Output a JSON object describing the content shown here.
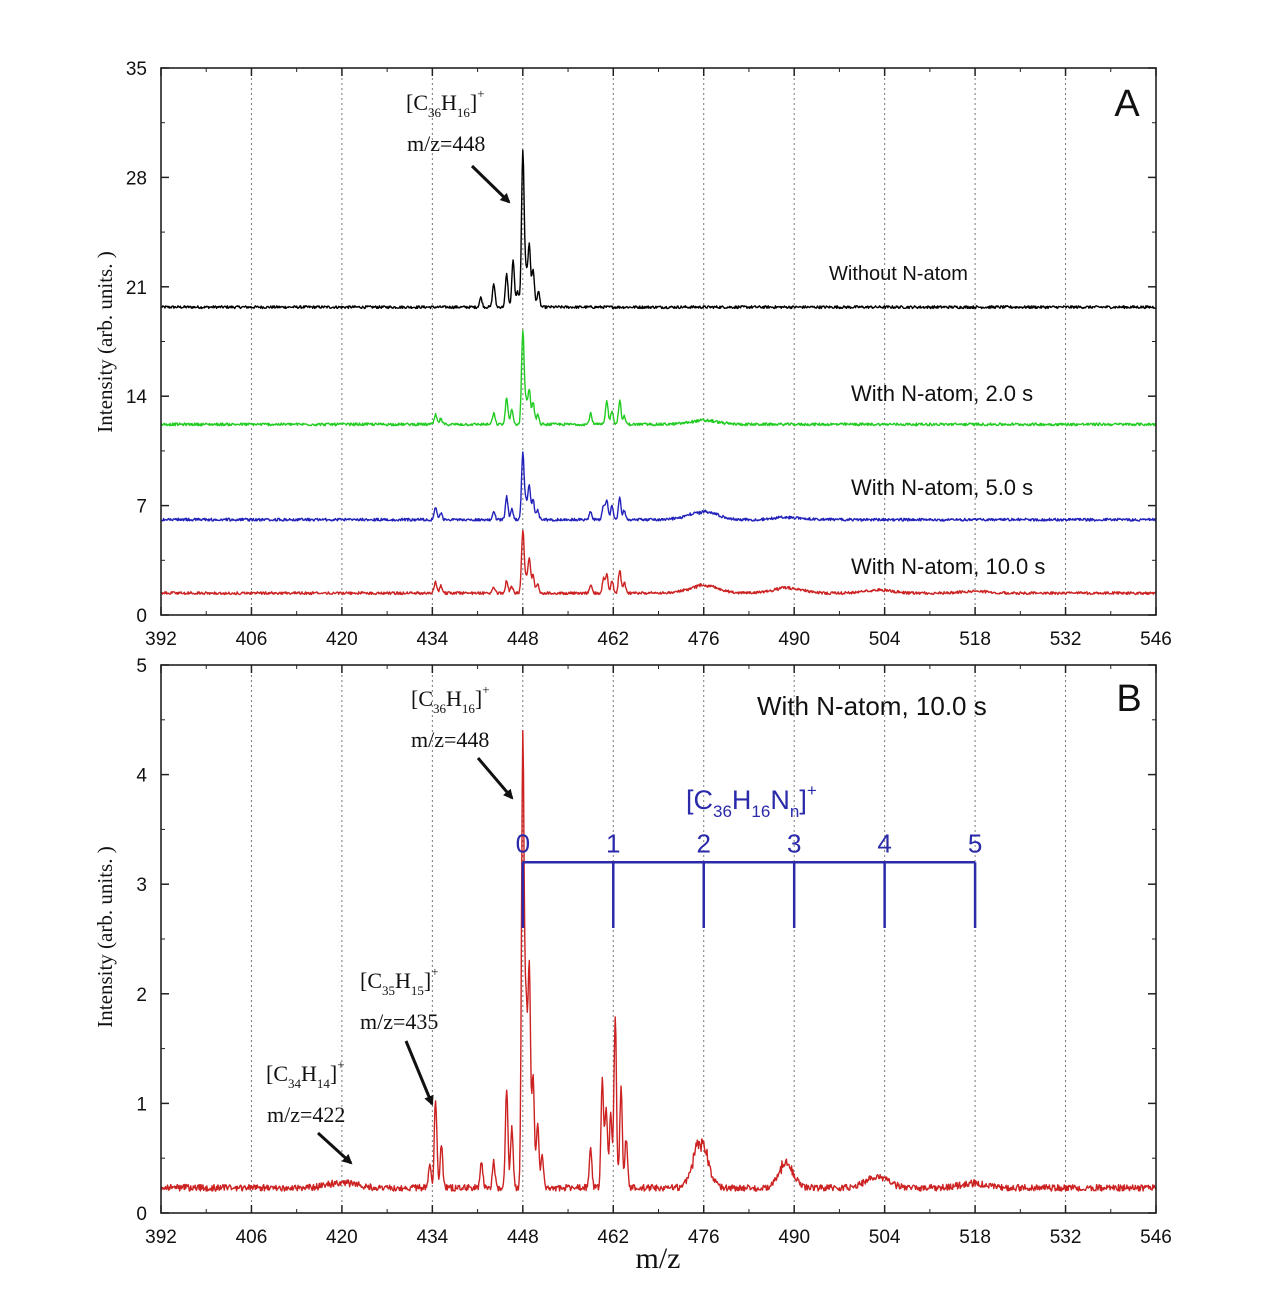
{
  "chart_data": [
    {
      "panel": "A",
      "type": "line",
      "panel_label": "A",
      "xlabel": "",
      "ylabel": "Intensity (arb. units. )",
      "xlim": [
        392,
        546
      ],
      "ylim": [
        0,
        35
      ],
      "xticks": [
        "392",
        "406",
        "420",
        "434",
        "448",
        "462",
        "476",
        "490",
        "504",
        "518",
        "532",
        "546"
      ],
      "yticks": [
        "0",
        "7",
        "14",
        "21",
        "28",
        "35"
      ],
      "grid_x": [
        406,
        420,
        434,
        448,
        462,
        476,
        490,
        504,
        518,
        532
      ],
      "series": [
        {
          "name": "Without N-atom",
          "color": "#000000",
          "baseline": 19.7,
          "peaks": [
            [
              441.5,
              0.6
            ],
            [
              443.5,
              1.5
            ],
            [
              445.5,
              2.1
            ],
            [
              446.5,
              3.0
            ],
            [
              447.2,
              1.0
            ],
            [
              448,
              10.0
            ],
            [
              448.5,
              2.2
            ],
            [
              449,
              4.0
            ],
            [
              449.6,
              2.4
            ],
            [
              450.4,
              1.0
            ]
          ]
        },
        {
          "name": "With N-atom, 2.0 s",
          "color": "#22cc22",
          "baseline": 12.2,
          "peaks": [
            [
              434.5,
              0.6
            ],
            [
              435.3,
              0.35
            ],
            [
              443.5,
              0.7
            ],
            [
              445.5,
              1.7
            ],
            [
              446.3,
              0.9
            ],
            [
              448,
              6.0
            ],
            [
              448.5,
              1.4
            ],
            [
              449,
              2.2
            ],
            [
              449.6,
              1.4
            ],
            [
              450.3,
              0.6
            ],
            [
              458.5,
              0.7
            ],
            [
              461,
              1.5
            ],
            [
              463,
              1.5
            ],
            [
              461.8,
              0.9
            ],
            [
              463.7,
              0.5
            ]
          ],
          "humps": [
            [
              476,
              0.25,
              3.0
            ]
          ]
        },
        {
          "name": "With N-atom, 5.0 s",
          "color": "#2222bb",
          "baseline": 6.1,
          "peaks": [
            [
              434.5,
              0.8
            ],
            [
              435.3,
              0.45
            ],
            [
              443.5,
              0.5
            ],
            [
              445.5,
              1.5
            ],
            [
              446.3,
              0.7
            ],
            [
              448,
              4.3
            ],
            [
              448.5,
              1.1
            ],
            [
              449,
              2.2
            ],
            [
              449.6,
              1.3
            ],
            [
              450.3,
              0.6
            ],
            [
              458.5,
              0.5
            ],
            [
              460.5,
              0.9
            ],
            [
              461,
              1.2
            ],
            [
              463,
              1.4
            ],
            [
              461.8,
              0.9
            ],
            [
              463.7,
              0.6
            ]
          ],
          "humps": [
            [
              475,
              0.3,
              3.0
            ],
            [
              477,
              0.25,
              2.5
            ],
            [
              489,
              0.15,
              3.0
            ]
          ]
        },
        {
          "name": "With N-atom, 10.0 s",
          "color": "#cc2222",
          "baseline": 1.4,
          "peaks": [
            [
              434.5,
              0.7
            ],
            [
              435.3,
              0.45
            ],
            [
              443.5,
              0.4
            ],
            [
              445.5,
              0.8
            ],
            [
              446.3,
              0.4
            ],
            [
              448,
              4.0
            ],
            [
              448.5,
              1.0
            ],
            [
              449,
              2.2
            ],
            [
              449.6,
              1.2
            ],
            [
              450.3,
              0.6
            ],
            [
              458.5,
              0.5
            ],
            [
              460.5,
              0.9
            ],
            [
              461,
              1.2
            ],
            [
              463,
              1.5
            ],
            [
              461.8,
              0.8
            ],
            [
              463.7,
              0.7
            ]
          ],
          "humps": [
            [
              476,
              0.5,
              3.0
            ],
            [
              489,
              0.35,
              3.0
            ],
            [
              503,
              0.2,
              3.0
            ],
            [
              518,
              0.12,
              3.0
            ]
          ]
        }
      ],
      "annotations": [
        {
          "kind": "formula",
          "text": "[C36H16]+",
          "base": "[C",
          "sub1": "36",
          "mid": "H",
          "sub2": "16",
          "close": "]",
          "sup": "+"
        },
        {
          "kind": "text",
          "text": "m/z=448"
        }
      ],
      "legend_labels": [
        "Without N-atom",
        "With N-atom, 2.0 s",
        "With N-atom, 5.0 s",
        "With N-atom, 10.0 s"
      ]
    },
    {
      "panel": "B",
      "type": "line",
      "panel_label": "B",
      "xlabel": "m/z",
      "ylabel": "Intensity (arb. units. )",
      "xlim": [
        392,
        546
      ],
      "ylim": [
        0,
        5
      ],
      "xticks": [
        "392",
        "406",
        "420",
        "434",
        "448",
        "462",
        "476",
        "490",
        "504",
        "518",
        "532",
        "546"
      ],
      "yticks": [
        "0",
        "1",
        "2",
        "3",
        "4",
        "5"
      ],
      "grid_x": [
        406,
        420,
        434,
        448,
        462,
        476,
        490,
        504,
        518,
        532
      ],
      "title_text": "With N-atom, 10.0 s",
      "series": [
        {
          "name": "With N-atom, 10.0 s",
          "color": "#cc2222",
          "baseline": 0.23,
          "peaks": [
            [
              433.6,
              0.2
            ],
            [
              434.5,
              0.82
            ],
            [
              435.4,
              0.4
            ],
            [
              441.6,
              0.25
            ],
            [
              443.5,
              0.25
            ],
            [
              445.5,
              0.9
            ],
            [
              446.3,
              0.55
            ],
            [
              448,
              4.1
            ],
            [
              448.5,
              1.6
            ],
            [
              449,
              2.0
            ],
            [
              449.6,
              1.0
            ],
            [
              450.3,
              0.6
            ],
            [
              451,
              0.3
            ],
            [
              458.5,
              0.35
            ],
            [
              460.3,
              1.0
            ],
            [
              460.9,
              0.75
            ],
            [
              461.6,
              0.7
            ],
            [
              462.3,
              1.55
            ],
            [
              463.2,
              0.9
            ],
            [
              464,
              0.45
            ]
          ],
          "humps": [
            [
              475.5,
              0.42,
              1.6
            ],
            [
              488.7,
              0.22,
              1.6
            ],
            [
              502.8,
              0.1,
              2.5
            ],
            [
              517.5,
              0.04,
              2.5
            ],
            [
              420,
              0.05,
              3.0
            ]
          ]
        }
      ],
      "n_ladder": {
        "label": {
          "base": "[C",
          "sub1": "36",
          "mid": "H",
          "sub2": "16",
          "n": "N",
          "sub3": "n",
          "close": "]",
          "sup": "+"
        },
        "color": "#2a2aaa",
        "y": 3.2,
        "tick_bottom": 2.6,
        "positions": [
          448,
          462,
          476,
          490,
          504,
          518
        ],
        "labels": [
          "0",
          "1",
          "2",
          "3",
          "4",
          "5"
        ]
      },
      "annotations": [
        {
          "id": "c36",
          "text": "[C36H16]+",
          "base": "[C",
          "sub1": "36",
          "mid": "H",
          "sub2": "16",
          "close": "]",
          "sup": "+",
          "mz": "m/z=448"
        },
        {
          "id": "c35",
          "text": "[C35H15]+",
          "base": "[C",
          "sub1": "35",
          "mid": "H",
          "sub2": "15",
          "close": "]",
          "sup": "+",
          "mz": "m/z=435"
        },
        {
          "id": "c34",
          "text": "[C34H14]+",
          "base": "[C",
          "sub1": "34",
          "mid": "H",
          "sub2": "14",
          "close": "]",
          "sup": "+",
          "mz": "m/z=422"
        }
      ]
    }
  ]
}
